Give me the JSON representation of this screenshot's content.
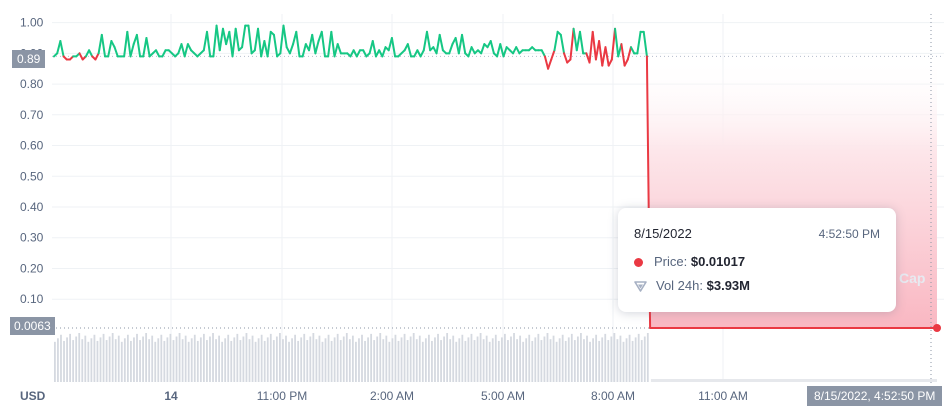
{
  "chart_data": {
    "type": "area",
    "currency_label": "USD",
    "y_ticks": [
      "1.00",
      "0.90",
      "0.80",
      "0.70",
      "0.60",
      "0.50",
      "0.40",
      "0.30",
      "0.20",
      "0.10"
    ],
    "y_tick_values": [
      1.0,
      0.9,
      0.8,
      0.7,
      0.6,
      0.5,
      0.4,
      0.3,
      0.2,
      0.1
    ],
    "ylim": [
      0.0063,
      1.0
    ],
    "x_ticks": [
      "14",
      "11:00 PM",
      "2:00 AM",
      "5:00 AM",
      "8:00 AM",
      "11:00 AM"
    ],
    "reference_price": 0.89,
    "reference_label": "0.89",
    "current_price": 0.0063,
    "current_label": "0.0063",
    "crosshair_time_label": "8/15/2022, 4:52:50 PM",
    "series": [
      {
        "values": [
          0.89,
          0.9,
          0.94,
          0.89,
          0.88,
          0.88,
          0.89,
          0.89,
          0.9,
          0.88,
          0.89,
          0.91,
          0.89,
          0.88,
          0.9,
          0.96,
          0.89,
          0.89,
          0.94,
          0.92,
          0.89,
          0.89,
          0.89,
          0.97,
          0.89,
          0.93,
          0.96,
          0.89,
          0.89,
          0.95,
          0.89,
          0.9,
          0.91,
          0.89,
          0.89,
          0.91,
          0.91,
          0.9,
          0.89,
          0.9,
          0.93,
          0.89,
          0.93,
          0.91,
          0.9,
          0.89,
          0.9,
          0.91,
          0.97,
          0.89,
          0.89,
          0.99,
          0.91,
          0.98,
          0.93,
          0.97,
          0.89,
          0.98,
          0.91,
          0.92,
          0.99,
          0.99,
          0.9,
          0.91,
          0.98,
          0.89,
          0.94,
          0.89,
          0.97,
          0.96,
          0.89,
          0.9,
          0.99,
          0.92,
          0.9,
          0.93,
          0.97,
          0.89,
          0.89,
          0.93,
          0.91,
          0.96,
          0.9,
          0.94,
          0.97,
          0.89,
          0.89,
          0.97,
          0.89,
          0.93,
          0.9,
          0.9,
          0.9,
          0.89,
          0.91,
          0.89,
          0.91,
          0.91,
          0.89,
          0.9,
          0.94,
          0.89,
          0.91,
          0.89,
          0.92,
          0.91,
          0.95,
          0.89,
          0.89,
          0.9,
          0.91,
          0.93,
          0.89,
          0.89,
          0.91,
          0.89,
          0.91,
          0.97,
          0.91,
          0.92,
          0.9,
          0.96,
          0.91,
          0.9,
          0.9,
          0.93,
          0.95,
          0.9,
          0.96,
          0.9,
          0.89,
          0.92,
          0.9,
          0.91,
          0.9,
          0.93,
          0.92,
          0.94,
          0.9,
          0.89,
          0.93,
          0.89,
          0.92,
          0.91,
          0.9,
          0.92,
          0.9,
          0.91,
          0.91,
          0.91,
          0.92,
          0.91,
          0.91,
          0.91,
          0.89,
          0.85,
          0.88,
          0.91,
          0.97,
          0.96,
          0.9,
          0.87,
          0.88,
          0.98,
          0.91,
          0.97,
          0.9,
          0.9,
          0.87,
          0.97,
          0.88,
          0.94,
          0.86,
          0.92,
          0.86,
          0.88,
          0.98,
          0.89,
          0.93,
          0.86,
          0.88,
          0.92,
          0.9,
          0.9,
          0.97,
          0.97,
          0.89,
          0.0063,
          0.0063,
          0.0063,
          0.0063,
          0.0063,
          0.0063,
          0.0063,
          0.0063,
          0.0063,
          0.0063,
          0.0063,
          0.0063,
          0.0063,
          0.0063,
          0.0063,
          0.0063,
          0.0063,
          0.0063,
          0.0063,
          0.0063,
          0.0063,
          0.0063,
          0.0063,
          0.0063,
          0.0063,
          0.0063,
          0.0063,
          0.0063,
          0.0063,
          0.0063,
          0.0063,
          0.0063,
          0.0063,
          0.0063,
          0.0063,
          0.0063,
          0.0063,
          0.0063,
          0.0063,
          0.0063,
          0.0063,
          0.0063,
          0.0063,
          0.0063,
          0.0063,
          0.0063,
          0.0063,
          0.0063,
          0.0063,
          0.0063,
          0.0063,
          0.0063,
          0.0063,
          0.0063,
          0.0063,
          0.0063,
          0.0063,
          0.0063,
          0.0063,
          0.0063,
          0.0063,
          0.0063,
          0.0063,
          0.0063,
          0.0063,
          0.0063,
          0.0063,
          0.0063,
          0.0063,
          0.0063,
          0.0063,
          0.0063,
          0.0063,
          0.0063,
          0.0063,
          0.0063,
          0.0063,
          0.0063,
          0.0063,
          0.0063,
          0.0063,
          0.0063,
          0.0063,
          0.0063,
          0.0063,
          0.0063,
          0.0063,
          0.0063,
          0.0063,
          0.0063,
          0.0063
        ]
      }
    ],
    "volume_bars": {
      "count": 196,
      "relative_heights": [
        1
      ]
    },
    "colors": {
      "up": "#16c784",
      "down": "#ea3943",
      "grid": "#eff2f5",
      "axis_tag": "#8b95a5"
    }
  },
  "tooltip": {
    "date": "8/15/2022",
    "time": "4:52:50 PM",
    "price_label": "Price:",
    "price_value": "$0.01017",
    "volume_label": "Vol 24h:",
    "volume_value": "$3.93M"
  }
}
